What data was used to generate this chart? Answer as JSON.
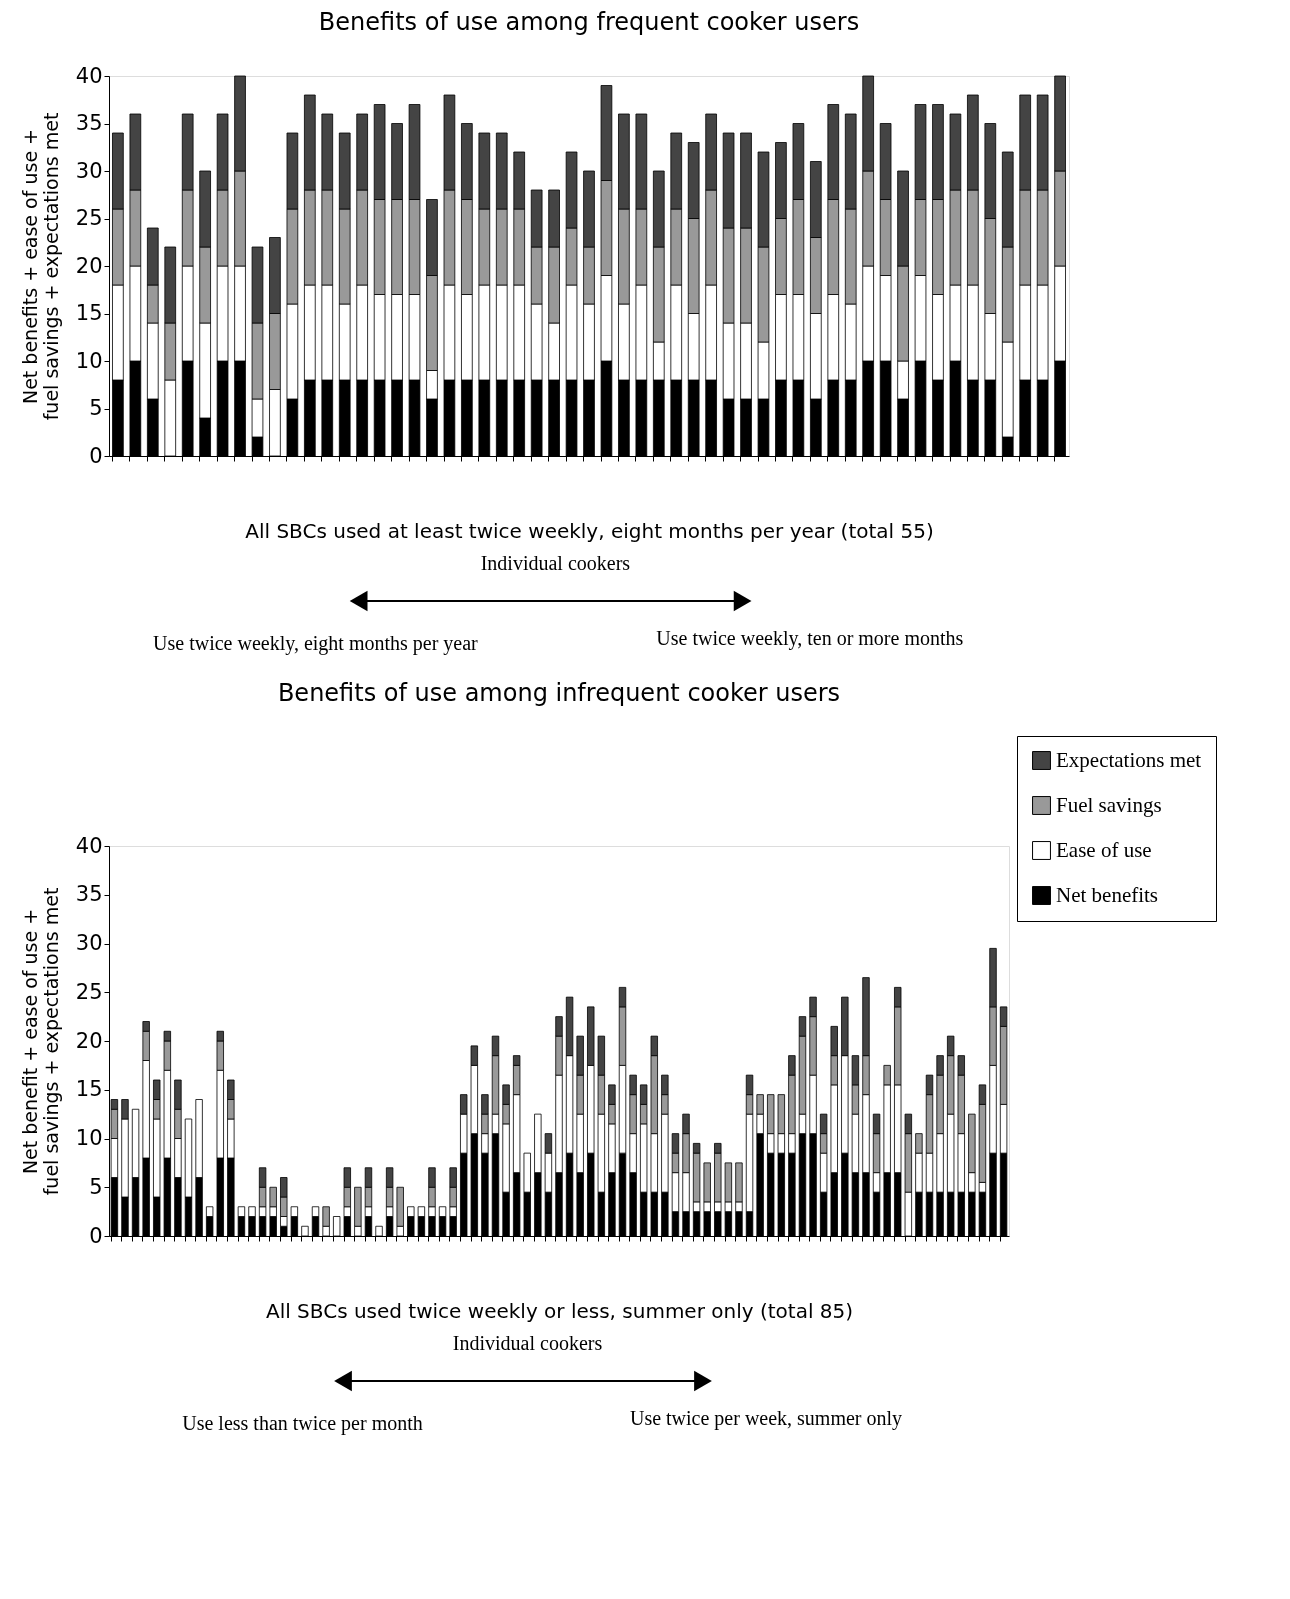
{
  "chart_data": [
    {
      "type": "bar",
      "stacked": true,
      "title": "Benefits of use among frequent cooker users",
      "xlabel": "All SBCs used at least twice weekly, eight months per year (total 55)",
      "ylabel": "Net benefits + ease of use + fuel savings + expectations met",
      "annotations": [
        "Individual cookers",
        "Use twice weekly, eight months per year",
        "Use twice weekly, ten or more months"
      ],
      "categories": [
        null,
        null,
        null,
        null,
        null,
        null,
        null,
        null,
        null,
        null,
        null,
        null,
        null,
        null,
        null,
        null,
        null,
        null,
        null,
        null,
        null,
        null,
        null,
        null,
        null,
        null,
        null,
        null,
        null,
        null,
        null,
        null,
        null,
        null,
        null,
        null,
        null,
        null,
        null,
        null,
        null,
        null,
        null,
        null,
        null,
        null,
        null,
        null,
        null,
        null,
        null,
        null,
        null,
        null,
        null
      ],
      "ylim": [
        0,
        40
      ],
      "yticks": [
        0,
        5,
        10,
        15,
        20,
        25,
        30,
        35,
        40
      ],
      "grid": false,
      "legend": false,
      "series": [
        {
          "color": "#000000",
          "values": [
            8,
            10,
            6,
            0,
            10,
            4,
            10,
            10,
            2,
            0,
            6,
            8,
            8,
            8,
            8,
            8,
            8,
            8,
            6,
            8,
            8,
            8,
            8,
            8,
            8,
            8,
            8,
            8,
            10,
            8,
            8,
            8,
            8,
            8,
            8,
            6,
            6,
            6,
            8,
            8,
            6,
            8,
            8,
            10,
            10,
            6,
            10,
            8,
            10,
            8,
            8,
            2,
            8,
            8,
            10
          ]
        },
        {
          "color": "#ffffff",
          "values": [
            10,
            10,
            8,
            8,
            10,
            10,
            10,
            10,
            4,
            7,
            10,
            10,
            10,
            8,
            10,
            9,
            9,
            9,
            3,
            10,
            9,
            10,
            10,
            10,
            8,
            6,
            10,
            8,
            9,
            8,
            10,
            4,
            10,
            7,
            10,
            8,
            8,
            6,
            9,
            9,
            9,
            9,
            8,
            10,
            9,
            4,
            9,
            9,
            8,
            10,
            7,
            10,
            10,
            10,
            10
          ]
        },
        {
          "color": "#999999",
          "values": [
            8,
            8,
            4,
            6,
            8,
            8,
            8,
            10,
            8,
            8,
            10,
            10,
            10,
            10,
            10,
            10,
            10,
            10,
            10,
            10,
            10,
            8,
            8,
            8,
            6,
            8,
            6,
            6,
            10,
            10,
            8,
            10,
            8,
            10,
            10,
            10,
            10,
            10,
            8,
            10,
            8,
            10,
            10,
            10,
            8,
            10,
            8,
            10,
            10,
            10,
            10,
            10,
            10,
            10,
            10
          ]
        },
        {
          "color": "#444444",
          "values": [
            8,
            8,
            6,
            8,
            8,
            8,
            8,
            10,
            8,
            8,
            8,
            10,
            8,
            8,
            8,
            10,
            8,
            10,
            8,
            10,
            8,
            8,
            8,
            6,
            6,
            6,
            8,
            8,
            10,
            10,
            10,
            8,
            8,
            8,
            8,
            10,
            10,
            10,
            8,
            8,
            8,
            10,
            10,
            10,
            8,
            10,
            10,
            10,
            8,
            10,
            10,
            10,
            10,
            10,
            10
          ]
        }
      ]
    },
    {
      "type": "bar",
      "stacked": true,
      "title": "Benefits of use among infrequent cooker users",
      "xlabel": "All SBCs used twice weekly or less, summer only (total 85)",
      "ylabel": "Net benefit + ease of use + fuel savings + expectations met",
      "annotations": [
        "Individual cookers",
        "Use less than twice per month",
        "Use twice per week, summer only"
      ],
      "categories": [
        null,
        null,
        null,
        null,
        null,
        null,
        null,
        null,
        null,
        null,
        null,
        null,
        null,
        null,
        null,
        null,
        null,
        null,
        null,
        null,
        null,
        null,
        null,
        null,
        null,
        null,
        null,
        null,
        null,
        null,
        null,
        null,
        null,
        null,
        null,
        null,
        null,
        null,
        null,
        null,
        null,
        null,
        null,
        null,
        null,
        null,
        null,
        null,
        null,
        null,
        null,
        null,
        null,
        null,
        null,
        null,
        null,
        null,
        null,
        null,
        null,
        null,
        null,
        null,
        null,
        null,
        null,
        null,
        null,
        null,
        null,
        null,
        null,
        null,
        null,
        null,
        null,
        null,
        null,
        null,
        null,
        null,
        null,
        null,
        null
      ],
      "ylim": [
        0,
        40
      ],
      "yticks": [
        0,
        5,
        10,
        15,
        20,
        25,
        30,
        35,
        40
      ],
      "grid": false,
      "legend": "top right",
      "series": [
        {
          "name": "Net benefits",
          "color": "#000000",
          "values": [
            6,
            4,
            6,
            8,
            4,
            8,
            6,
            4,
            6,
            2,
            8,
            8,
            2,
            2,
            2,
            2,
            1,
            2,
            0,
            2,
            0,
            0,
            2,
            0,
            2,
            0,
            2,
            0,
            2,
            2,
            2,
            2,
            2,
            8.5,
            10.5,
            8.5,
            10.5,
            4.5,
            6.5,
            4.5,
            6.5,
            4.5,
            6.5,
            8.5,
            6.5,
            8.5,
            4.5,
            6.5,
            8.5,
            6.5,
            4.5,
            4.5,
            4.5,
            2.5,
            2.5,
            2.5,
            2.5,
            2.5,
            2.5,
            2.5,
            2.5,
            10.5,
            8.5,
            8.5,
            8.5,
            10.5,
            10.5,
            4.5,
            6.5,
            8.5,
            6.5,
            6.5,
            4.5,
            6.5,
            6.5,
            0,
            4.5,
            4.5,
            4.5,
            4.5,
            4.5,
            4.5,
            4.5,
            8.5,
            8.5
          ]
        },
        {
          "name": "Ease of use",
          "color": "#ffffff",
          "values": [
            4,
            8,
            7,
            10,
            8,
            9,
            4,
            8,
            8,
            1,
            9,
            4,
            1,
            1,
            1,
            1,
            1,
            1,
            1,
            1,
            1,
            2,
            1,
            1,
            1,
            1,
            1,
            1,
            1,
            1,
            1,
            1,
            1,
            4,
            7,
            2,
            2,
            7,
            8,
            4,
            6,
            4,
            10,
            10,
            6,
            9,
            8,
            5,
            9,
            4,
            7,
            6,
            8,
            4,
            4,
            1,
            1,
            1,
            1,
            1,
            10,
            2,
            2,
            2,
            2,
            2,
            6,
            4,
            9,
            10,
            6,
            8,
            2,
            9,
            9,
            4.5,
            4,
            4,
            6,
            8,
            6,
            2,
            1,
            9,
            5
          ]
        },
        {
          "name": "Fuel savings",
          "color": "#999999",
          "values": [
            3,
            0,
            0,
            3,
            2,
            3,
            3,
            0,
            0,
            0,
            3,
            2,
            0,
            0,
            2,
            2,
            2,
            0,
            0,
            0,
            2,
            0,
            2,
            4,
            2,
            0,
            2,
            4,
            0,
            0,
            2,
            0,
            2,
            0,
            0,
            2,
            6,
            2,
            3,
            0,
            0,
            0,
            4,
            0,
            4,
            0,
            4,
            2,
            6,
            4,
            2,
            8,
            2,
            2,
            4,
            5,
            4,
            5,
            4,
            4,
            2,
            2,
            4,
            4,
            6,
            8,
            6,
            2,
            3,
            0,
            3,
            4,
            4,
            2,
            8,
            6,
            2,
            6,
            6,
            6,
            6,
            6,
            8,
            6,
            8
          ]
        },
        {
          "name": "Expectations met",
          "color": "#444444",
          "values": [
            1,
            2,
            0,
            1,
            2,
            1,
            3,
            0,
            0,
            0,
            1,
            2,
            0,
            0,
            2,
            0,
            2,
            0,
            0,
            0,
            0,
            0,
            2,
            0,
            2,
            0,
            2,
            0,
            0,
            0,
            2,
            0,
            2,
            2,
            2,
            2,
            2,
            2,
            1,
            0,
            0,
            2,
            2,
            6,
            4,
            6,
            4,
            2,
            2,
            2,
            2,
            2,
            2,
            2,
            2,
            1,
            0,
            1,
            0,
            0,
            2,
            0,
            0,
            0,
            2,
            2,
            2,
            2,
            3,
            6,
            3,
            8,
            2,
            0,
            2,
            2,
            0,
            2,
            2,
            2,
            2,
            0,
            2,
            6,
            2
          ]
        }
      ]
    }
  ]
}
